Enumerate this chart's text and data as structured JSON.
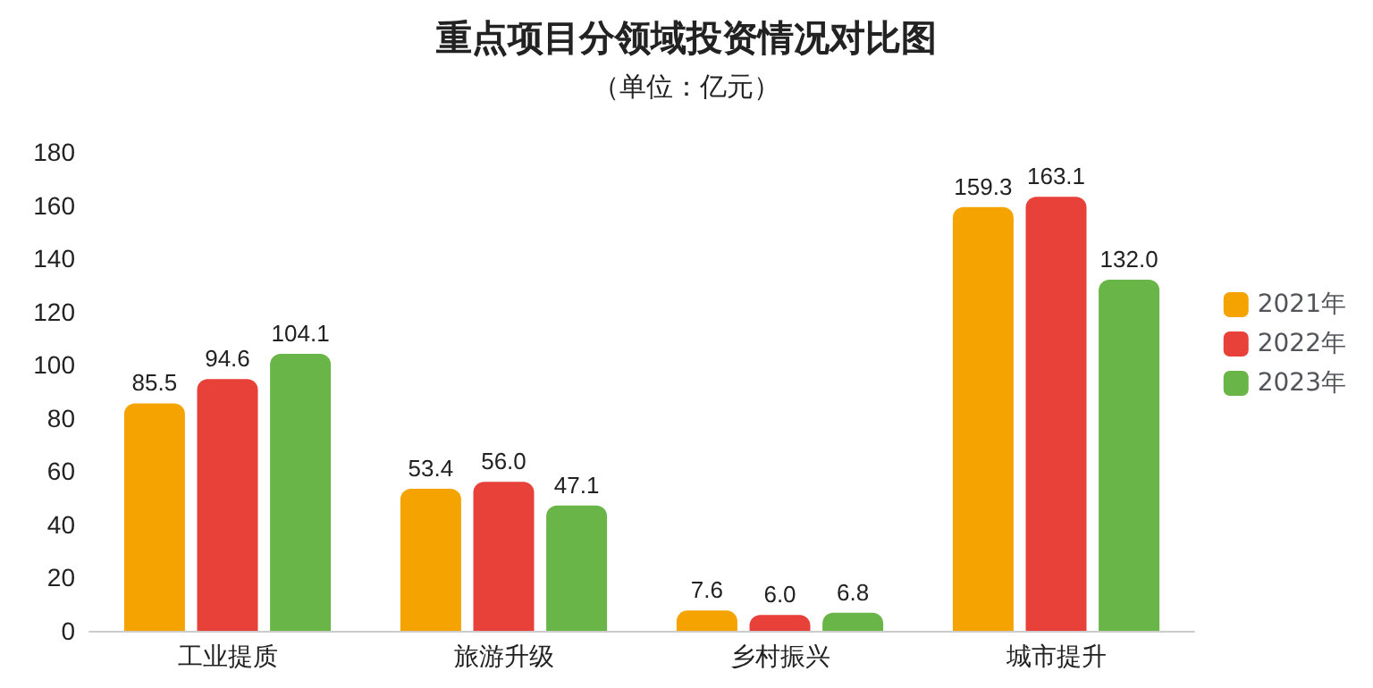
{
  "chart_data": {
    "type": "bar",
    "title": "重点项目分领域投资情况对比图",
    "subtitle": "（单位：亿元）",
    "categories": [
      "工业提质",
      "旅游升级",
      "乡村振兴",
      "城市提升"
    ],
    "series": [
      {
        "name": "2021年",
        "color": "#f5a300",
        "values": [
          85.5,
          53.4,
          7.6,
          159.3
        ]
      },
      {
        "name": "2022年",
        "color": "#e8413a",
        "values": [
          94.6,
          56.0,
          6.0,
          163.1
        ]
      },
      {
        "name": "2023年",
        "color": "#6ab547",
        "values": [
          104.1,
          47.1,
          6.8,
          132.0
        ]
      }
    ],
    "value_labels": [
      [
        "85.5",
        "53.4",
        "7.6",
        "159.3"
      ],
      [
        "94.6",
        "56.0",
        "6.0",
        "163.1"
      ],
      [
        "104.1",
        "47.1",
        "6.8",
        "132.0"
      ]
    ],
    "ylim": [
      0,
      180
    ],
    "yticks": [
      0,
      20,
      40,
      60,
      80,
      100,
      120,
      140,
      160,
      180
    ],
    "grid": false,
    "legend": "right"
  }
}
